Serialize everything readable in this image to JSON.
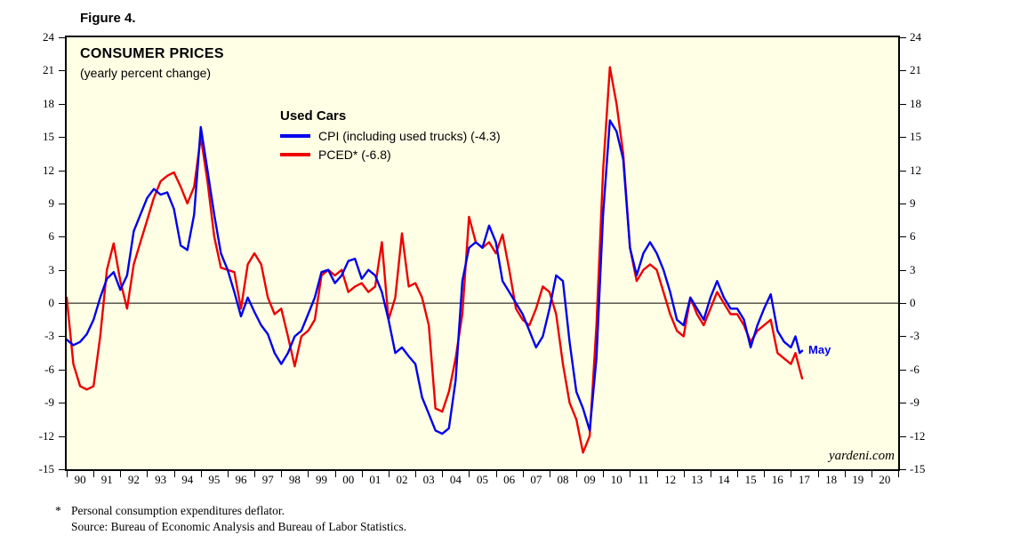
{
  "figure_label": "Figure 4.",
  "title": "CONSUMER PRICES",
  "subtitle": "(yearly percent change)",
  "legend": {
    "heading": "Used Cars",
    "items": [
      {
        "label": "CPI (including used trucks) (-4.3)",
        "color": "#0000ee"
      },
      {
        "label": "PCED* (-6.8)",
        "color": "#ee0000"
      }
    ]
  },
  "annotations": {
    "last_point_label": "May",
    "watermark": "yardeni.com"
  },
  "footnote": {
    "marker": "*",
    "line1": "Personal consumption expenditures deflator.",
    "line2": "Source: Bureau of Economic Analysis and Bureau of Labor Statistics."
  },
  "chart_data": {
    "type": "line",
    "title": "CONSUMER PRICES",
    "subtitle": "(yearly percent change)",
    "xlabel": "",
    "ylabel": "",
    "xlim": [
      1990,
      2021
    ],
    "ylim": [
      -15,
      24
    ],
    "y_ticks": [
      24,
      21,
      18,
      15,
      12,
      9,
      6,
      3,
      0,
      -3,
      -6,
      -9,
      -12,
      -15
    ],
    "x_tick_labels": [
      "90",
      "91",
      "92",
      "93",
      "94",
      "95",
      "96",
      "97",
      "98",
      "99",
      "00",
      "01",
      "02",
      "03",
      "04",
      "05",
      "06",
      "07",
      "08",
      "09",
      "10",
      "11",
      "12",
      "13",
      "14",
      "15",
      "16",
      "17",
      "18",
      "19",
      "20"
    ],
    "grid": false,
    "zero_line": true,
    "plot_background": "#ffffe6",
    "legend_position": "inside-top-left",
    "series": [
      {
        "id": "cpi",
        "name": "CPI (including used trucks)",
        "latest_value": -4.3,
        "latest_period": "May",
        "color": "#0000ee",
        "points": [
          [
            1990.0,
            -3.3
          ],
          [
            1990.25,
            -3.8
          ],
          [
            1990.5,
            -3.5
          ],
          [
            1990.75,
            -2.8
          ],
          [
            1991.0,
            -1.5
          ],
          [
            1991.25,
            0.5
          ],
          [
            1991.5,
            2.2
          ],
          [
            1991.75,
            2.8
          ],
          [
            1992.0,
            1.2
          ],
          [
            1992.25,
            2.5
          ],
          [
            1992.5,
            6.5
          ],
          [
            1992.75,
            8.0
          ],
          [
            1993.0,
            9.5
          ],
          [
            1993.25,
            10.3
          ],
          [
            1993.5,
            9.8
          ],
          [
            1993.75,
            10.0
          ],
          [
            1994.0,
            8.5
          ],
          [
            1994.25,
            5.2
          ],
          [
            1994.5,
            4.8
          ],
          [
            1994.75,
            8.0
          ],
          [
            1995.0,
            15.9
          ],
          [
            1995.25,
            12.0
          ],
          [
            1995.5,
            8.0
          ],
          [
            1995.75,
            4.5
          ],
          [
            1996.0,
            3.0
          ],
          [
            1996.25,
            1.0
          ],
          [
            1996.5,
            -1.2
          ],
          [
            1996.75,
            0.5
          ],
          [
            1997.0,
            -0.8
          ],
          [
            1997.25,
            -2.0
          ],
          [
            1997.5,
            -2.8
          ],
          [
            1997.75,
            -4.5
          ],
          [
            1998.0,
            -5.5
          ],
          [
            1998.25,
            -4.5
          ],
          [
            1998.5,
            -3.0
          ],
          [
            1998.75,
            -2.5
          ],
          [
            1999.0,
            -1.0
          ],
          [
            1999.25,
            0.5
          ],
          [
            1999.5,
            2.8
          ],
          [
            1999.75,
            3.0
          ],
          [
            2000.0,
            1.8
          ],
          [
            2000.25,
            2.5
          ],
          [
            2000.5,
            3.8
          ],
          [
            2000.75,
            4.0
          ],
          [
            2001.0,
            2.2
          ],
          [
            2001.25,
            3.0
          ],
          [
            2001.5,
            2.5
          ],
          [
            2001.75,
            1.0
          ],
          [
            2002.0,
            -1.5
          ],
          [
            2002.25,
            -4.5
          ],
          [
            2002.5,
            -4.0
          ],
          [
            2002.75,
            -4.8
          ],
          [
            2003.0,
            -5.5
          ],
          [
            2003.25,
            -8.5
          ],
          [
            2003.5,
            -10.0
          ],
          [
            2003.75,
            -11.5
          ],
          [
            2004.0,
            -11.8
          ],
          [
            2004.25,
            -11.3
          ],
          [
            2004.5,
            -7.0
          ],
          [
            2004.75,
            2.0
          ],
          [
            2005.0,
            5.0
          ],
          [
            2005.25,
            5.5
          ],
          [
            2005.5,
            5.0
          ],
          [
            2005.75,
            7.0
          ],
          [
            2006.0,
            5.5
          ],
          [
            2006.25,
            2.0
          ],
          [
            2006.5,
            1.0
          ],
          [
            2006.75,
            0.0
          ],
          [
            2007.0,
            -1.0
          ],
          [
            2007.25,
            -2.5
          ],
          [
            2007.5,
            -4.0
          ],
          [
            2007.75,
            -3.0
          ],
          [
            2008.0,
            -0.5
          ],
          [
            2008.25,
            2.5
          ],
          [
            2008.5,
            2.0
          ],
          [
            2008.75,
            -3.5
          ],
          [
            2009.0,
            -8.0
          ],
          [
            2009.25,
            -9.5
          ],
          [
            2009.5,
            -11.5
          ],
          [
            2009.75,
            -5.0
          ],
          [
            2010.0,
            8.0
          ],
          [
            2010.25,
            16.5
          ],
          [
            2010.5,
            15.5
          ],
          [
            2010.75,
            13.0
          ],
          [
            2011.0,
            5.0
          ],
          [
            2011.25,
            2.5
          ],
          [
            2011.5,
            4.5
          ],
          [
            2011.75,
            5.5
          ],
          [
            2012.0,
            4.5
          ],
          [
            2012.25,
            3.0
          ],
          [
            2012.5,
            1.0
          ],
          [
            2012.75,
            -1.5
          ],
          [
            2013.0,
            -2.0
          ],
          [
            2013.25,
            0.5
          ],
          [
            2013.5,
            -0.5
          ],
          [
            2013.75,
            -1.5
          ],
          [
            2014.0,
            0.5
          ],
          [
            2014.25,
            2.0
          ],
          [
            2014.5,
            0.5
          ],
          [
            2014.75,
            -0.5
          ],
          [
            2015.0,
            -0.5
          ],
          [
            2015.25,
            -1.5
          ],
          [
            2015.5,
            -4.0
          ],
          [
            2015.75,
            -2.0
          ],
          [
            2016.0,
            -0.5
          ],
          [
            2016.25,
            0.8
          ],
          [
            2016.5,
            -2.5
          ],
          [
            2016.75,
            -3.5
          ],
          [
            2017.0,
            -4.0
          ],
          [
            2017.17,
            -3.0
          ],
          [
            2017.33,
            -4.5
          ],
          [
            2017.42,
            -4.3
          ]
        ]
      },
      {
        "id": "pced",
        "name": "PCED*",
        "latest_value": -6.8,
        "latest_period": "May",
        "color": "#ee0000",
        "points": [
          [
            1990.0,
            0.5
          ],
          [
            1990.25,
            -5.5
          ],
          [
            1990.5,
            -7.5
          ],
          [
            1990.75,
            -7.8
          ],
          [
            1991.0,
            -7.5
          ],
          [
            1991.25,
            -3.0
          ],
          [
            1991.5,
            3.0
          ],
          [
            1991.75,
            5.4
          ],
          [
            1992.0,
            2.0
          ],
          [
            1992.25,
            -0.5
          ],
          [
            1992.5,
            3.5
          ],
          [
            1992.75,
            5.5
          ],
          [
            1993.0,
            7.5
          ],
          [
            1993.25,
            9.5
          ],
          [
            1993.5,
            11.0
          ],
          [
            1993.75,
            11.5
          ],
          [
            1994.0,
            11.8
          ],
          [
            1994.25,
            10.5
          ],
          [
            1994.5,
            9.0
          ],
          [
            1994.75,
            10.5
          ],
          [
            1995.0,
            15.0
          ],
          [
            1995.25,
            11.0
          ],
          [
            1995.5,
            6.0
          ],
          [
            1995.75,
            3.2
          ],
          [
            1996.0,
            3.0
          ],
          [
            1996.25,
            2.8
          ],
          [
            1996.5,
            -0.5
          ],
          [
            1996.75,
            3.5
          ],
          [
            1997.0,
            4.5
          ],
          [
            1997.25,
            3.5
          ],
          [
            1997.5,
            0.5
          ],
          [
            1997.75,
            -1.0
          ],
          [
            1998.0,
            -0.5
          ],
          [
            1998.25,
            -3.0
          ],
          [
            1998.5,
            -5.7
          ],
          [
            1998.75,
            -3.0
          ],
          [
            1999.0,
            -2.5
          ],
          [
            1999.25,
            -1.5
          ],
          [
            1999.5,
            2.5
          ],
          [
            1999.75,
            3.0
          ],
          [
            2000.0,
            2.5
          ],
          [
            2000.25,
            3.0
          ],
          [
            2000.5,
            1.0
          ],
          [
            2000.75,
            1.5
          ],
          [
            2001.0,
            1.8
          ],
          [
            2001.25,
            1.0
          ],
          [
            2001.5,
            1.5
          ],
          [
            2001.75,
            5.5
          ],
          [
            2002.0,
            -1.5
          ],
          [
            2002.25,
            0.5
          ],
          [
            2002.5,
            6.3
          ],
          [
            2002.75,
            1.5
          ],
          [
            2003.0,
            1.8
          ],
          [
            2003.25,
            0.5
          ],
          [
            2003.5,
            -2.0
          ],
          [
            2003.75,
            -9.5
          ],
          [
            2004.0,
            -9.8
          ],
          [
            2004.25,
            -8.0
          ],
          [
            2004.5,
            -5.0
          ],
          [
            2004.75,
            -1.0
          ],
          [
            2005.0,
            7.8
          ],
          [
            2005.25,
            5.5
          ],
          [
            2005.5,
            5.0
          ],
          [
            2005.75,
            5.5
          ],
          [
            2006.0,
            4.5
          ],
          [
            2006.25,
            6.2
          ],
          [
            2006.5,
            3.0
          ],
          [
            2006.75,
            -0.5
          ],
          [
            2007.0,
            -1.5
          ],
          [
            2007.25,
            -2.0
          ],
          [
            2007.5,
            -0.5
          ],
          [
            2007.75,
            1.5
          ],
          [
            2008.0,
            1.0
          ],
          [
            2008.25,
            -1.0
          ],
          [
            2008.5,
            -5.5
          ],
          [
            2008.75,
            -9.0
          ],
          [
            2009.0,
            -10.5
          ],
          [
            2009.25,
            -13.5
          ],
          [
            2009.5,
            -12.0
          ],
          [
            2009.75,
            -2.0
          ],
          [
            2010.0,
            12.0
          ],
          [
            2010.25,
            21.3
          ],
          [
            2010.5,
            18.0
          ],
          [
            2010.75,
            13.5
          ],
          [
            2011.0,
            5.0
          ],
          [
            2011.25,
            2.0
          ],
          [
            2011.5,
            3.0
          ],
          [
            2011.75,
            3.5
          ],
          [
            2012.0,
            3.0
          ],
          [
            2012.25,
            1.0
          ],
          [
            2012.5,
            -1.0
          ],
          [
            2012.75,
            -2.5
          ],
          [
            2013.0,
            -3.0
          ],
          [
            2013.25,
            0.5
          ],
          [
            2013.5,
            -1.0
          ],
          [
            2013.75,
            -2.0
          ],
          [
            2014.0,
            -0.5
          ],
          [
            2014.25,
            1.0
          ],
          [
            2014.5,
            0.0
          ],
          [
            2014.75,
            -1.0
          ],
          [
            2015.0,
            -1.0
          ],
          [
            2015.25,
            -2.0
          ],
          [
            2015.5,
            -3.5
          ],
          [
            2015.75,
            -2.5
          ],
          [
            2016.0,
            -2.0
          ],
          [
            2016.25,
            -1.5
          ],
          [
            2016.5,
            -4.5
          ],
          [
            2016.75,
            -5.0
          ],
          [
            2017.0,
            -5.5
          ],
          [
            2017.17,
            -4.5
          ],
          [
            2017.33,
            -6.0
          ],
          [
            2017.42,
            -6.8
          ]
        ]
      }
    ]
  }
}
